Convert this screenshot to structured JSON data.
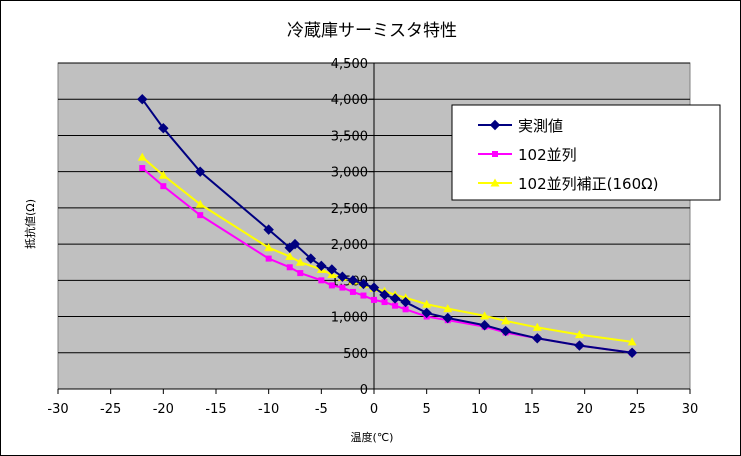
{
  "chart_data": {
    "type": "line",
    "title": "冷蔵庫サーミスタ特性",
    "xlabel": "温度(℃)",
    "ylabel": "抵抗値(Ω)",
    "xlim": [
      -30,
      30
    ],
    "ylim": [
      0,
      4500
    ],
    "xticks": [
      -30,
      -25,
      -20,
      -15,
      -10,
      -5,
      0,
      5,
      10,
      15,
      20,
      25,
      30
    ],
    "yticks": [
      0,
      500,
      1000,
      1500,
      2000,
      2500,
      3000,
      3500,
      4000,
      4500
    ],
    "ytick_labels": [
      "0",
      "500",
      "1,000",
      "1,500",
      "2,000",
      "2,500",
      "3,000",
      "3,500",
      "4,000",
      "4,500"
    ],
    "grid": "horizontal",
    "legend_position": "right",
    "plot_background": "#c0c0c0",
    "series": [
      {
        "name": "実測値",
        "color": "#000080",
        "marker": "diamond",
        "x": [
          -22,
          -20,
          -16.5,
          -10,
          -8,
          -7.5,
          -6,
          -5,
          -4,
          -3,
          -2,
          -1,
          0,
          1,
          2,
          3,
          5,
          7,
          10.5,
          12.5,
          15.5,
          19.5,
          24.5
        ],
        "y": [
          4000,
          3600,
          3000,
          2200,
          1950,
          2000,
          1800,
          1700,
          1650,
          1550,
          1500,
          1450,
          1400,
          1300,
          1250,
          1200,
          1050,
          980,
          880,
          800,
          700,
          600,
          500
        ]
      },
      {
        "name": "102並列",
        "color": "#ff00ff",
        "marker": "square",
        "x": [
          -22,
          -20,
          -16.5,
          -10,
          -8,
          -7,
          -5,
          -4,
          -3,
          -2,
          -1,
          0,
          1,
          2,
          3,
          5,
          7,
          10.5,
          12.5,
          15.5,
          19.5,
          24.5
        ],
        "y": [
          3050,
          2800,
          2400,
          1800,
          1680,
          1600,
          1500,
          1430,
          1400,
          1340,
          1290,
          1230,
          1200,
          1150,
          1100,
          1000,
          950,
          860,
          780,
          700,
          600,
          500
        ]
      },
      {
        "name": "102並列補正(160Ω)",
        "color": "#ffff00",
        "marker": "triangle",
        "x": [
          -22,
          -20,
          -16.5,
          -10,
          -8,
          -7,
          -5,
          -4,
          -3,
          -2,
          -1,
          0,
          1,
          2,
          3,
          5,
          7,
          10.5,
          12.5,
          15.5,
          19.5,
          24.5
        ],
        "y": [
          3200,
          2950,
          2550,
          1950,
          1830,
          1750,
          1650,
          1580,
          1540,
          1490,
          1440,
          1390,
          1350,
          1300,
          1260,
          1170,
          1110,
          1010,
          940,
          850,
          750,
          650
        ]
      }
    ]
  }
}
